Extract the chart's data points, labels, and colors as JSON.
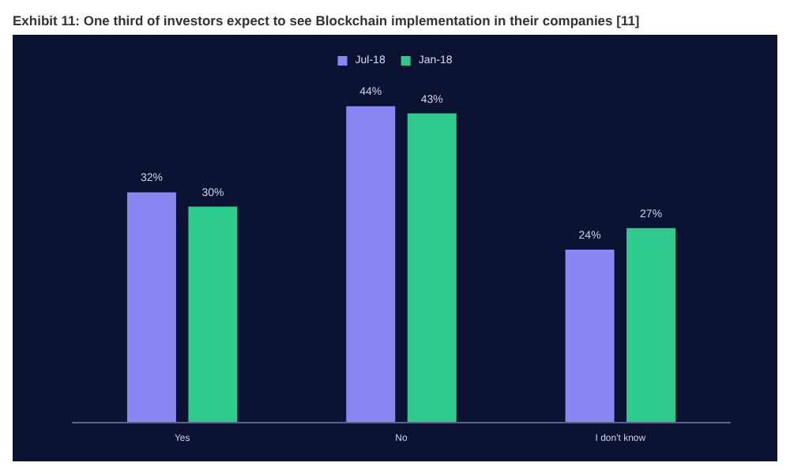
{
  "chart_data": {
    "type": "bar",
    "title": "Exhibit 11: One third of investors expect to see Blockchain implementation in their companies [11]",
    "categories": [
      "Yes",
      "No",
      "I don't know"
    ],
    "series": [
      {
        "name": "Jul-18",
        "color": "#8a86f2",
        "values": [
          32,
          44,
          24
        ],
        "value_labels": [
          "32%",
          "44%",
          "24%"
        ]
      },
      {
        "name": "Jan-18",
        "color": "#2fcb8c",
        "values": [
          30,
          43,
          27
        ],
        "value_labels": [
          "30%",
          "43%",
          "27%"
        ]
      }
    ],
    "legend": "top",
    "grid": false
  }
}
